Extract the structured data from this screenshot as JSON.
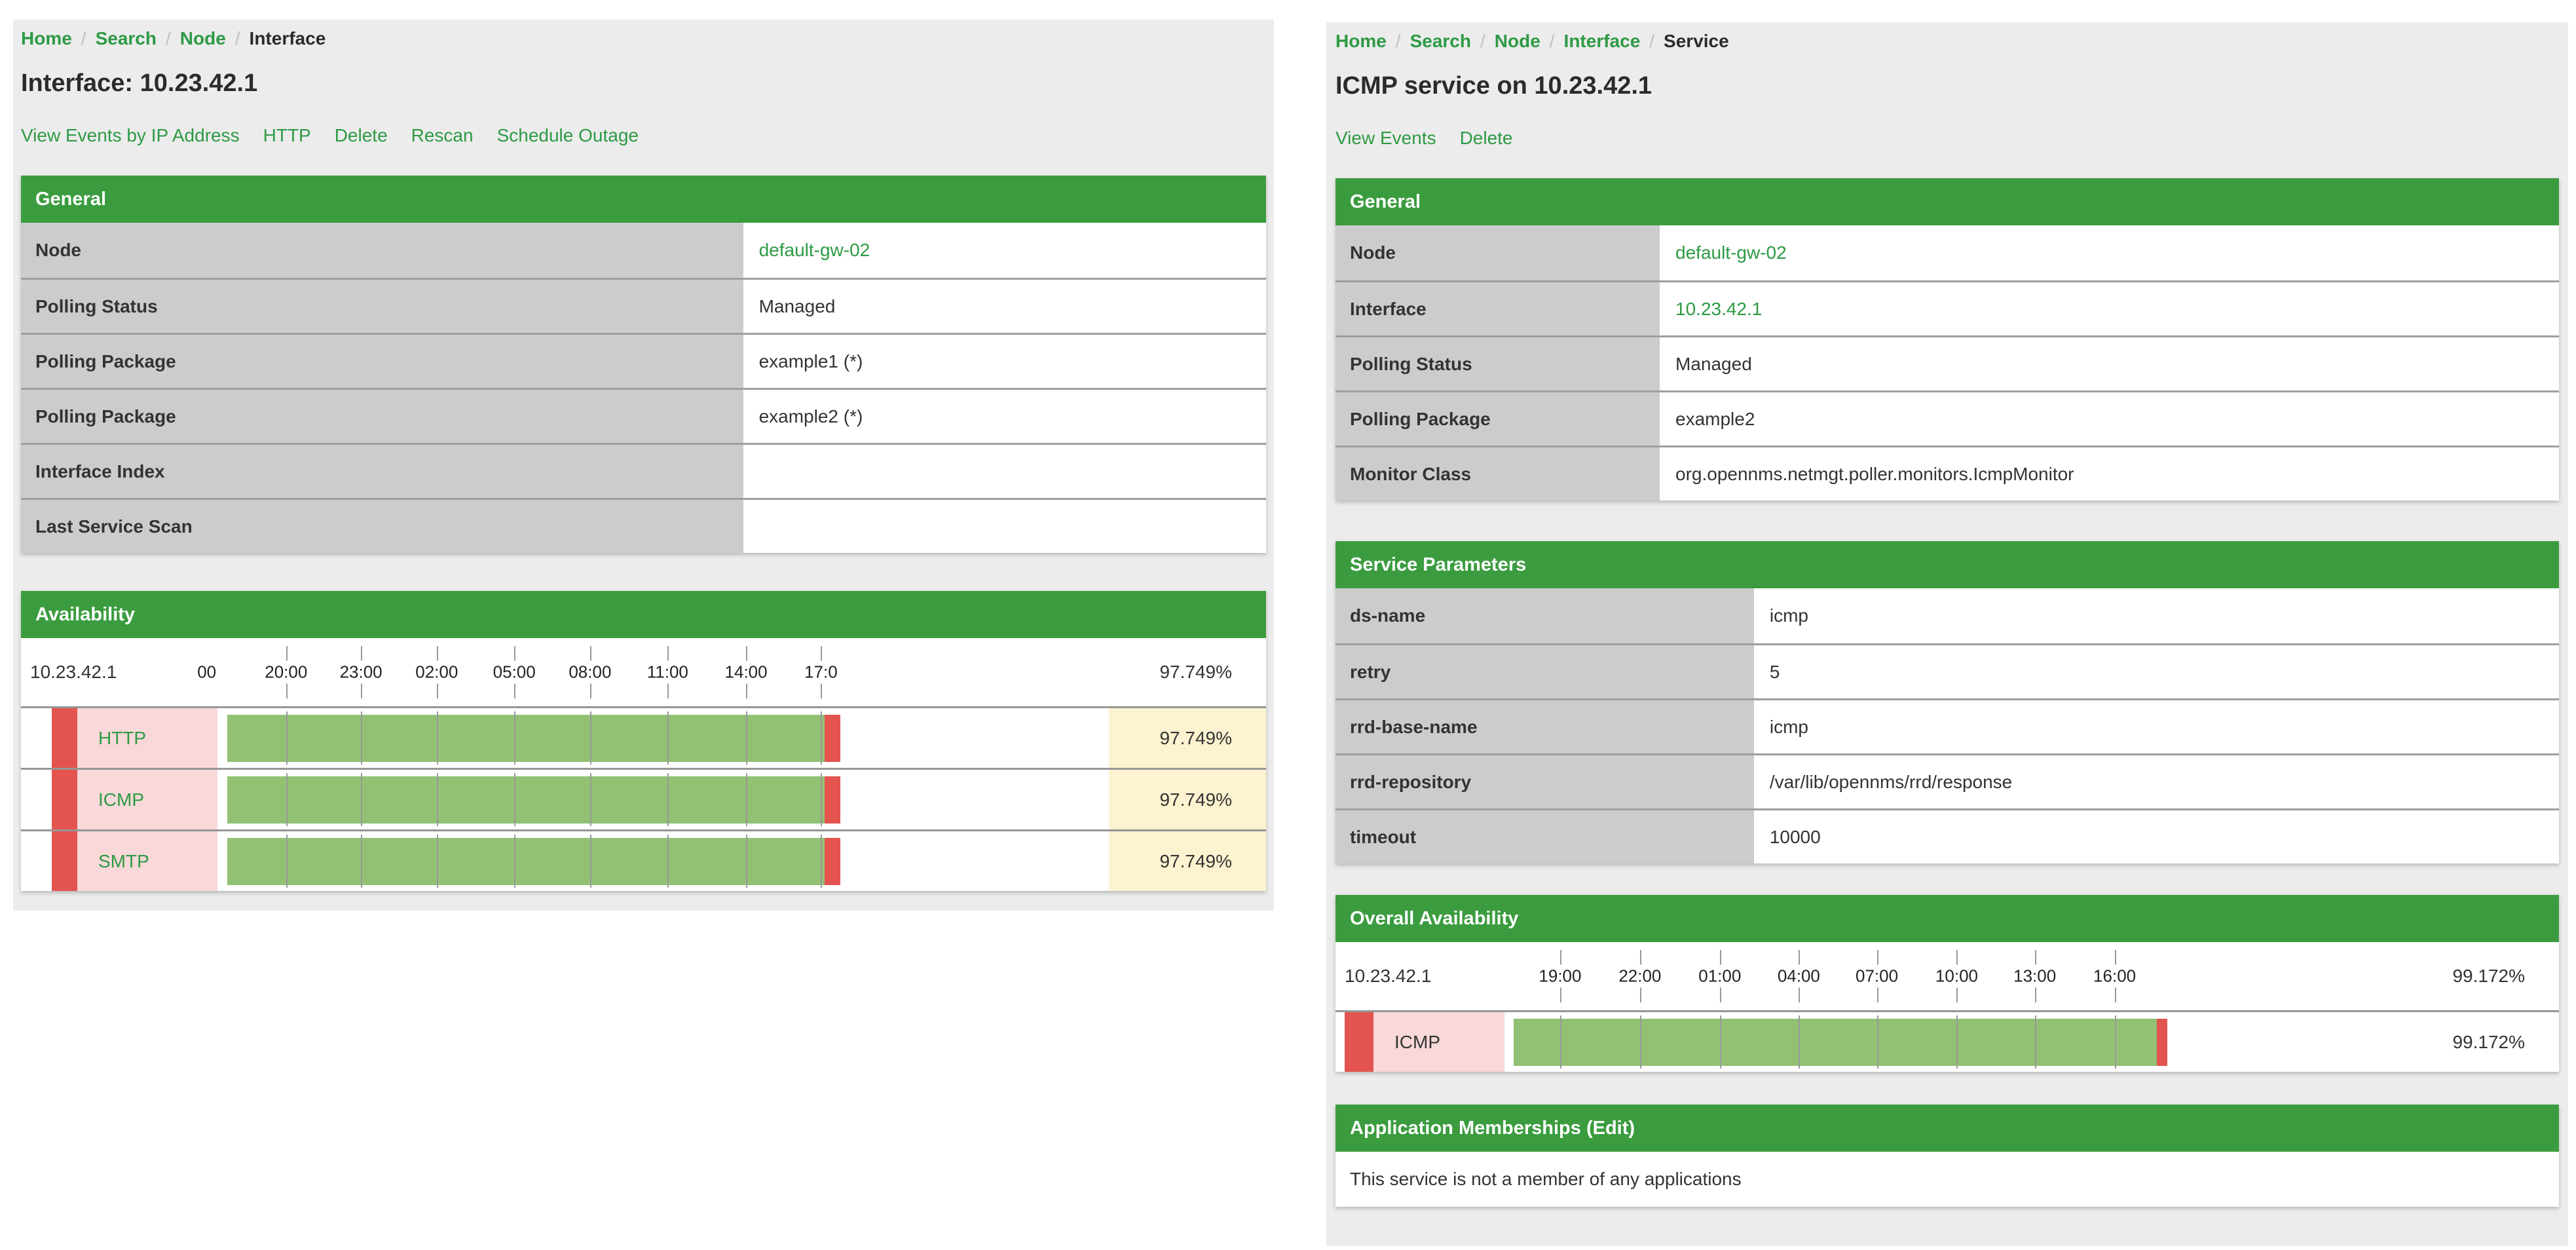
{
  "colors": {
    "panel-bg": "#ececec",
    "section-green": "#3b9c3f",
    "link-green": "#2d9a44",
    "label-cell": "#cccccc",
    "row-border": "#9e9e9e",
    "text": "#333333",
    "bar-green": "#92c173",
    "bar-red": "#e4544f",
    "cell-pink": "#f8d8d8",
    "cell-yellow": "#fdf3d0",
    "tick-gray": "#999999"
  },
  "left_page": {
    "breadcrumb": {
      "items": [
        {
          "label": "Home"
        },
        {
          "label": "Search"
        },
        {
          "label": "Node"
        },
        {
          "label": "Interface"
        }
      ]
    },
    "title": "Interface: 10.23.42.1",
    "actions": [
      "View Events by IP Address",
      "HTTP",
      "Delete",
      "Rescan",
      "Schedule Outage"
    ],
    "general": {
      "header": "General",
      "rows": [
        {
          "label": "Node",
          "value": "default-gw-02"
        },
        {
          "label": "Polling Status",
          "value": "Managed"
        },
        {
          "label": "Polling Package",
          "value": "example1 (*)"
        },
        {
          "label": "Polling Package",
          "value": "example2 (*)"
        },
        {
          "label": "Interface Index",
          "value": ""
        },
        {
          "label": "Last Service Scan",
          "value": ""
        }
      ]
    },
    "availability": {
      "header": "Availability",
      "ip": "10.23.42.1",
      "overall_percent": "97.749%",
      "overall_value": 97.749,
      "axis_labels": [
        {
          "text": "00",
          "pct": -1.2,
          "tick": false
        },
        {
          "text": "20:00",
          "pct": 7.7,
          "tick": true
        },
        {
          "text": "23:00",
          "pct": 16.1,
          "tick": true
        },
        {
          "text": "02:00",
          "pct": 24.6,
          "tick": true
        },
        {
          "text": "05:00",
          "pct": 33.3,
          "tick": true
        },
        {
          "text": "08:00",
          "pct": 41.8,
          "tick": true
        },
        {
          "text": "11:00",
          "pct": 50.5,
          "tick": true
        },
        {
          "text": "14:00",
          "pct": 59.3,
          "tick": true
        },
        {
          "text": "17:0",
          "pct": 67.7,
          "tick": true
        }
      ],
      "bar": {
        "start_pct": 1.1,
        "green_pct": 67.0,
        "red_pct": 1.8
      },
      "rows": [
        {
          "service": "HTTP",
          "percent": "97.749%",
          "value": 97.749
        },
        {
          "service": "ICMP",
          "percent": "97.749%",
          "value": 97.749
        },
        {
          "service": "SMTP",
          "percent": "97.749%",
          "value": 97.749
        }
      ]
    }
  },
  "right_page": {
    "breadcrumb": {
      "items": [
        {
          "label": "Home"
        },
        {
          "label": "Search"
        },
        {
          "label": "Node"
        },
        {
          "label": "Interface"
        },
        {
          "label": "Service"
        }
      ]
    },
    "title": "ICMP service on 10.23.42.1",
    "actions": [
      "View Events",
      "Delete"
    ],
    "general": {
      "header": "General",
      "rows": [
        {
          "label": "Node",
          "value": "default-gw-02"
        },
        {
          "label": "Interface",
          "value": "10.23.42.1"
        },
        {
          "label": "Polling Status",
          "value": "Managed"
        },
        {
          "label": "Polling Package",
          "value": "example2"
        },
        {
          "label": "Monitor Class",
          "value": "org.opennms.netmgt.poller.monitors.IcmpMonitor"
        }
      ]
    },
    "service_parameters": {
      "header": "Service Parameters",
      "rows": [
        {
          "label": "ds-name",
          "value": "icmp"
        },
        {
          "label": "retry",
          "value": "5"
        },
        {
          "label": "rrd-base-name",
          "value": "icmp"
        },
        {
          "label": "rrd-repository",
          "value": "/var/lib/opennms/rrd/response"
        },
        {
          "label": "timeout",
          "value": "10000"
        }
      ]
    },
    "overall_availability": {
      "header": "Overall Availability",
      "ip": "10.23.42.1",
      "overall_percent": "99.172%",
      "overall_value": 99.172,
      "axis_labels": [
        {
          "text": "19:00",
          "pct": 6.2,
          "tick": true
        },
        {
          "text": "22:00",
          "pct": 15.1,
          "tick": true
        },
        {
          "text": "01:00",
          "pct": 24.0,
          "tick": true
        },
        {
          "text": "04:00",
          "pct": 32.8,
          "tick": true
        },
        {
          "text": "07:00",
          "pct": 41.5,
          "tick": true
        },
        {
          "text": "10:00",
          "pct": 50.4,
          "tick": true
        },
        {
          "text": "13:00",
          "pct": 59.1,
          "tick": true
        },
        {
          "text": "16:00",
          "pct": 68.0,
          "tick": true
        }
      ],
      "bar": {
        "start_pct": 1.0,
        "green_pct": 71.7,
        "red_pct": 1.2
      },
      "rows": [
        {
          "service": "ICMP",
          "percent": "99.172%",
          "value": 99.172
        }
      ]
    },
    "application_memberships": {
      "header": "Application Memberships (Edit)",
      "body": "This service is not a member of any applications"
    }
  }
}
